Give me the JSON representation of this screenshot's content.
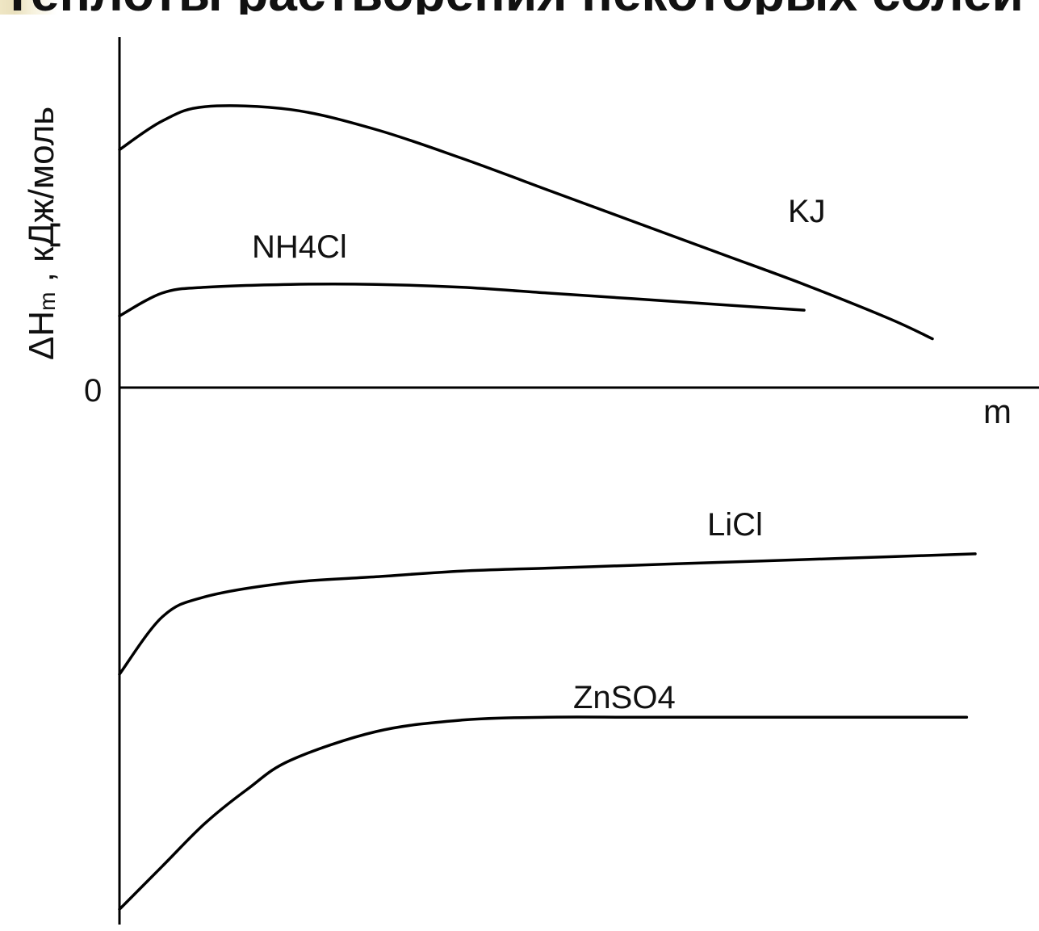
{
  "slide": {
    "title": "Теплоты растворения некоторых солей в воде"
  },
  "chart_data": {
    "type": "line",
    "xlabel": "m",
    "ylabel_main": "ΔH",
    "ylabel_sub": "m",
    "ylabel_rest": " , кДж/моль",
    "y_zero_label": "0",
    "grid": false,
    "legend": "inline labels near curves",
    "series": [
      {
        "name": "KJ",
        "x": [
          0,
          0.05,
          0.1,
          0.2,
          0.3,
          0.4,
          0.5,
          0.6,
          0.7,
          0.8,
          0.9,
          0.95
        ],
        "values": [
          0.83,
          0.93,
          0.98,
          0.97,
          0.9,
          0.8,
          0.69,
          0.58,
          0.47,
          0.36,
          0.24,
          0.17
        ]
      },
      {
        "name": "NH4Cl",
        "x": [
          0,
          0.05,
          0.1,
          0.2,
          0.3,
          0.4,
          0.5,
          0.6,
          0.7,
          0.8
        ],
        "values": [
          0.25,
          0.33,
          0.35,
          0.36,
          0.36,
          0.35,
          0.33,
          0.31,
          0.29,
          0.27
        ]
      },
      {
        "name": "LiCl",
        "x": [
          0,
          0.05,
          0.1,
          0.2,
          0.3,
          0.4,
          0.5,
          0.6,
          0.7,
          0.8,
          0.9,
          1.0
        ],
        "values": [
          -1.0,
          -0.8,
          -0.73,
          -0.68,
          -0.66,
          -0.64,
          -0.63,
          -0.62,
          -0.61,
          -0.6,
          -0.59,
          -0.58
        ]
      },
      {
        "name": "ZnSO4",
        "x": [
          0,
          0.05,
          0.1,
          0.15,
          0.2,
          0.3,
          0.4,
          0.5,
          0.6,
          0.7,
          0.8,
          0.9,
          0.99
        ],
        "values": [
          -1.82,
          -1.67,
          -1.52,
          -1.4,
          -1.3,
          -1.2,
          -1.16,
          -1.15,
          -1.15,
          -1.15,
          -1.15,
          -1.15,
          -1.15
        ]
      }
    ]
  }
}
